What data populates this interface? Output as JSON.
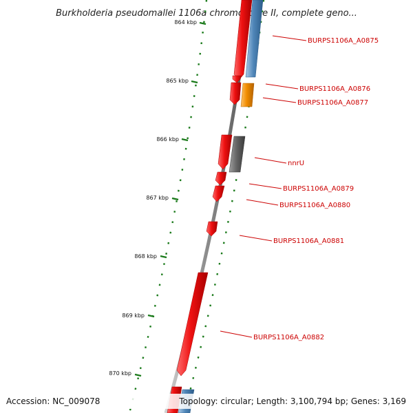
{
  "title": "Burkholderia pseudomallei 1106a chromosome II, complete geno...",
  "ticks": [
    "864 kbp",
    "865 kbp",
    "866 kbp",
    "867 kbp",
    "868 kbp",
    "869 kbp",
    "870 kbp"
  ],
  "gene_labels": [
    "BURPS1106A_A0875",
    "BURPS1106A_A0876",
    "BURPS1106A_A0877",
    "nnrU",
    "BURPS1106A_A0879",
    "BURPS1106A_A0880",
    "BURPS1106A_A0881",
    "BURPS1106A_A0882"
  ],
  "footer": {
    "accession": "Accession: NC_009078",
    "summary": "Topology: circular; Length: 3,100,794 bp; Genes: 3,169"
  },
  "colors": {
    "cds_reverse": "#ee1111",
    "cds_forward": "#4f86b8",
    "orange_feature": "#f08c00",
    "gray_feature": "#666666",
    "backbone": "#8a8a8a",
    "ticks": "#1a7a1a",
    "label": "#cc0000"
  }
}
